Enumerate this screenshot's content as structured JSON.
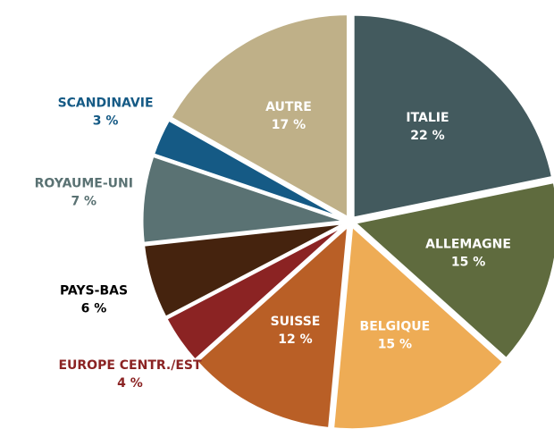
{
  "chart_data": {
    "type": "pie",
    "categories": [
      "ITALIE",
      "ALLEMAGNE",
      "BELGIQUE",
      "SUISSE",
      "EUROPE CENTR./EST",
      "PAYS-BAS",
      "ROYAUME-UNI",
      "SCANDINAVIE",
      "AUTRE"
    ],
    "values": [
      22,
      15,
      15,
      12,
      4,
      6,
      7,
      3,
      17
    ],
    "value_labels": [
      "22 %",
      "15 %",
      "15 %",
      "12 %",
      "4 %",
      "6 %",
      "7 %",
      "3 %",
      "17 %"
    ],
    "colors": [
      "#435a5e",
      "#5f6b3e",
      "#eeac55",
      "#b95f26",
      "#8b2323",
      "#45230e",
      "#5a7273",
      "#155a85",
      "#bfb088"
    ],
    "label_colors": [
      "#ffffff",
      "#ffffff",
      "#ffffff",
      "#ffffff",
      "#8b2323",
      "#000000",
      "#5a7273",
      "#155a85",
      "#ffffff"
    ]
  }
}
